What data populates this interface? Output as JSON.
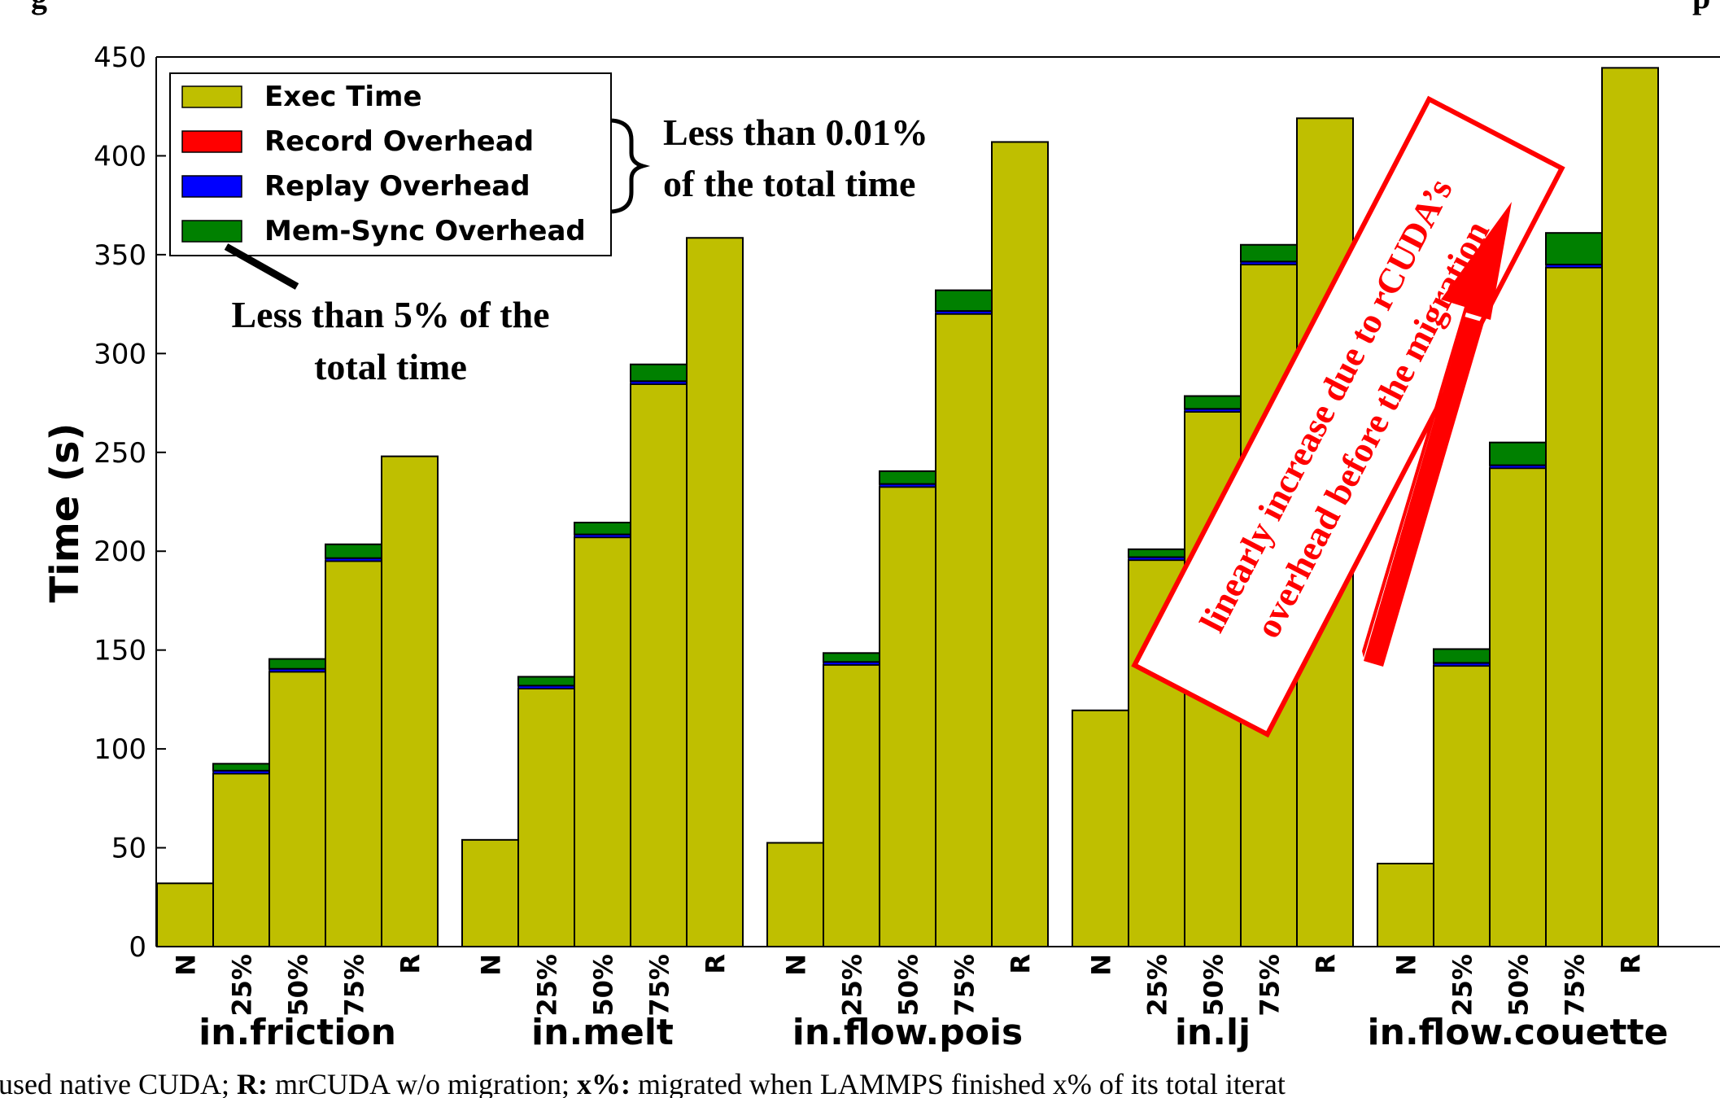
{
  "top_text": "g",
  "top_text_right": "p",
  "caption": {
    "part1": " used native CUDA; ",
    "r_key": "R:",
    "part2": " mrCUDA w/o migration;  ",
    "x_key": "x%:",
    "part3": " migrated when LAMMPS finished x% of its total iterat"
  },
  "chart_data": {
    "type": "bar",
    "stacked": true,
    "ylabel": "Time (s)",
    "ylim": [
      0,
      450
    ],
    "yticks": [
      0,
      50,
      100,
      150,
      200,
      250,
      300,
      350,
      400,
      450
    ],
    "grid": false,
    "legend_position": "top-left",
    "legend": [
      {
        "name": "Exec Time",
        "color": "#bfbf00"
      },
      {
        "name": "Record Overhead",
        "color": "#ff0000"
      },
      {
        "name": "Replay Overhead",
        "color": "#0000ff"
      },
      {
        "name": "Mem-Sync Overhead",
        "color": "#008000"
      }
    ],
    "categories": [
      "N",
      "25%",
      "50%",
      "75%",
      "R"
    ],
    "groups": [
      {
        "name": "in.friction",
        "exec": [
          32,
          87.5,
          139,
          195,
          248
        ],
        "replay": [
          0,
          1.5,
          1.5,
          1.5,
          0
        ],
        "memsync": [
          0,
          3.5,
          5,
          7,
          0
        ]
      },
      {
        "name": "in.melt",
        "exec": [
          54,
          130.5,
          207,
          284.5,
          358.5
        ],
        "replay": [
          0,
          1.5,
          1.5,
          1.5,
          0
        ],
        "memsync": [
          0,
          4.5,
          6,
          8.5,
          0
        ]
      },
      {
        "name": "in.flow.pois",
        "exec": [
          52.5,
          142.5,
          232.5,
          320,
          407
        ],
        "replay": [
          0,
          1.5,
          1.5,
          1.5,
          0
        ],
        "memsync": [
          0,
          4.5,
          6.5,
          10.5,
          0
        ]
      },
      {
        "name": "in.lj",
        "exec": [
          119.5,
          195.5,
          270.5,
          345,
          419
        ],
        "replay": [
          0,
          1.5,
          1.5,
          1.5,
          0
        ],
        "memsync": [
          0,
          4,
          6.5,
          8.5,
          0
        ]
      },
      {
        "name": "in.flow.couette",
        "exec": [
          42,
          142,
          242,
          343.5,
          444.5
        ],
        "replay": [
          0,
          1.5,
          1.5,
          1.5,
          0
        ],
        "memsync": [
          0,
          7,
          11.5,
          16,
          0
        ]
      }
    ],
    "annotations": {
      "brace_line1": "Less than 0.01%",
      "brace_line2": "of the total time",
      "memsync_line1": "Less than 5% of the",
      "memsync_line2": "total time",
      "red_line1": "linearly increase due to rCUDA’s",
      "red_line2": "overhead before the migration"
    }
  }
}
